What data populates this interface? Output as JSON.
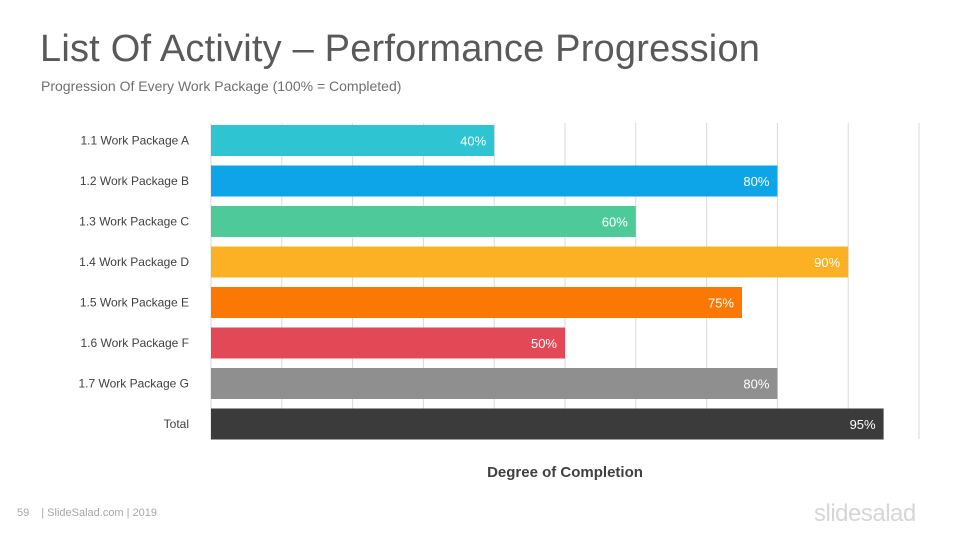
{
  "header": {
    "title": "List Of Activity – Performance Progression",
    "subtitle": "Progression Of Every Work Package (100% = Completed)"
  },
  "footer": {
    "page_number": "59",
    "credit": "| SlideSalad.com | 2019",
    "logo_text": "slidesalad"
  },
  "chart_data": {
    "type": "bar",
    "orientation": "horizontal",
    "xlabel": "Degree of Completion",
    "ylabel": "",
    "xlim": [
      0,
      100
    ],
    "grid": true,
    "categories": [
      "1.1  Work  Package  A",
      "1.2  Work  Package  B",
      "1.3  Work  Package  C",
      "1.4  Work  Package  D",
      "1.5  Work  Package  E",
      "1.6  Work  Package  F",
      "1.7  Work  Package  G",
      "Total"
    ],
    "values": [
      40,
      80,
      60,
      90,
      75,
      50,
      80,
      95
    ],
    "value_labels": [
      "40%",
      "80%",
      "60%",
      "90%",
      "75%",
      "50%",
      "80%",
      "95%"
    ],
    "colors": [
      "#2ec4d1",
      "#0ea5e8",
      "#4dc99a",
      "#fbb123",
      "#fc7805",
      "#e34857",
      "#8f8f8f",
      "#3b3b3b"
    ]
  }
}
